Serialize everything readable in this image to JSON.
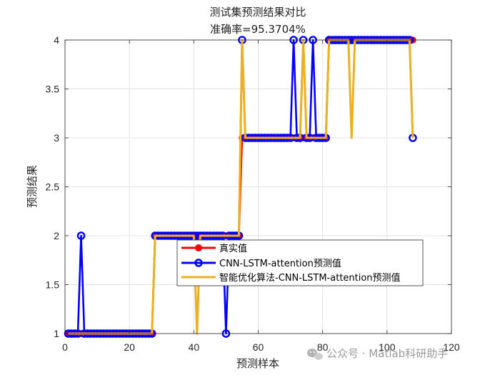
{
  "chart_data": {
    "type": "line",
    "title": "测试集预测结果对比",
    "subtitle": "准确率=95.3704%",
    "xlabel": "预测样本",
    "ylabel": "预测结果",
    "xlim": [
      0,
      120
    ],
    "ylim": [
      1,
      4
    ],
    "xticks": [
      0,
      20,
      40,
      60,
      80,
      100,
      120
    ],
    "yticks": [
      1,
      1.5,
      2,
      2.5,
      3,
      3.5,
      4
    ],
    "grid": true,
    "legend_position": "center",
    "series": [
      {
        "name": "真实值",
        "color": "#ff0000",
        "marker": "filled-circle",
        "segments": [
          {
            "from": 1,
            "to": 27,
            "value": 1
          },
          {
            "from": 28,
            "to": 54,
            "value": 2
          },
          {
            "from": 55,
            "to": 81,
            "value": 3
          },
          {
            "from": 82,
            "to": 108,
            "value": 4
          }
        ]
      },
      {
        "name": "CNN-LSTM-attention预测值",
        "color": "#0000ff",
        "marker": "open-circle",
        "segments": [
          {
            "from": 1,
            "to": 27,
            "value": 1
          },
          {
            "from": 28,
            "to": 54,
            "value": 2
          },
          {
            "from": 55,
            "to": 81,
            "value": 3
          },
          {
            "from": 82,
            "to": 108,
            "value": 4
          }
        ],
        "overrides": [
          {
            "x": 5,
            "y": 2
          },
          {
            "x": 50,
            "y": 1
          },
          {
            "x": 55,
            "y": 4
          },
          {
            "x": 71,
            "y": 4
          },
          {
            "x": 74,
            "y": 4
          },
          {
            "x": 77,
            "y": 4
          },
          {
            "x": 108,
            "y": 3
          }
        ]
      },
      {
        "name": "智能优化算法-CNN-LSTM-attention预测值",
        "color": "#edb120",
        "marker": "none",
        "segments": [
          {
            "from": 1,
            "to": 27,
            "value": 1
          },
          {
            "from": 28,
            "to": 54,
            "value": 2
          },
          {
            "from": 55,
            "to": 81,
            "value": 3
          },
          {
            "from": 82,
            "to": 108,
            "value": 4
          }
        ],
        "overrides": [
          {
            "x": 41,
            "y": 1
          },
          {
            "x": 55,
            "y": 4
          },
          {
            "x": 74,
            "y": 4
          },
          {
            "x": 89,
            "y": 3
          },
          {
            "x": 108,
            "y": 3
          }
        ]
      }
    ]
  },
  "watermark": {
    "text": "公众号 · Matlab科研助手",
    "icon": "wechat-icon"
  }
}
